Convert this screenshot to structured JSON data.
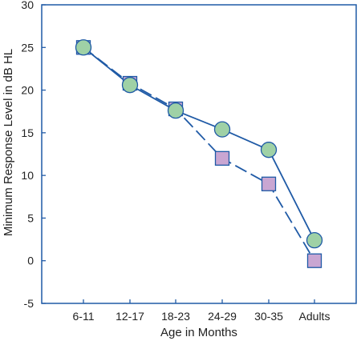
{
  "chart_data": {
    "type": "line",
    "title": "",
    "xlabel": "Age in Months",
    "ylabel": "Minimum Response Level in dB HL",
    "categories": [
      "6-11",
      "12-17",
      "18-23",
      "24-29",
      "30-35",
      "Adults"
    ],
    "ylim": [
      -5,
      30
    ],
    "yticks": [
      30,
      25,
      20,
      15,
      10,
      5,
      0,
      -5
    ],
    "grid": false,
    "series": [
      {
        "marker": "square",
        "line_style": "dashed",
        "line_color": "#1f5aa6",
        "marker_fill": "#c9a6d2",
        "values": [
          25,
          20.8,
          17.8,
          12,
          9,
          0
        ]
      },
      {
        "marker": "circle",
        "line_style": "solid",
        "line_color": "#1f5aa6",
        "marker_fill": "#9fd1a6",
        "values": [
          25,
          20.6,
          17.6,
          15.4,
          13,
          2.4
        ]
      }
    ]
  },
  "colors": {
    "axis": "#1f5aa6",
    "text": "#222222"
  }
}
